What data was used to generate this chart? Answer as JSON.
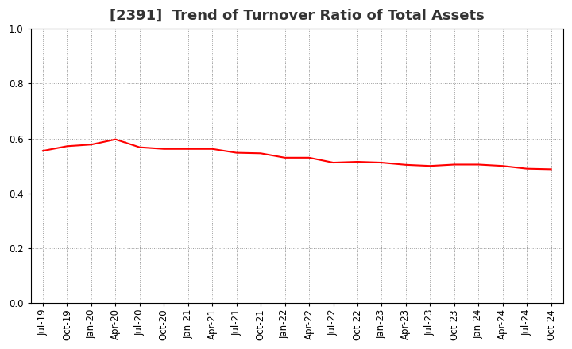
{
  "title": "[2391]  Trend of Turnover Ratio of Total Assets",
  "line_color": "#FF0000",
  "line_width": 1.5,
  "background_color": "#FFFFFF",
  "plot_bg_color": "#FFFFFF",
  "grid_color": "#999999",
  "ylim": [
    0.0,
    1.0
  ],
  "yticks": [
    0.0,
    0.2,
    0.4,
    0.6,
    0.8,
    1.0
  ],
  "values": [
    0.555,
    0.572,
    0.578,
    0.597,
    0.568,
    0.562,
    0.562,
    0.562,
    0.548,
    0.546,
    0.53,
    0.53,
    0.512,
    0.515,
    0.512,
    0.504,
    0.5,
    0.505,
    0.505,
    0.5,
    0.49,
    0.488
  ],
  "xtick_labels": [
    "Jul-19",
    "Oct-19",
    "Jan-20",
    "Apr-20",
    "Jul-20",
    "Oct-20",
    "Jan-21",
    "Apr-21",
    "Jul-21",
    "Oct-21",
    "Jan-22",
    "Apr-22",
    "Jul-22",
    "Oct-22",
    "Jan-23",
    "Apr-23",
    "Jul-23",
    "Oct-23",
    "Jan-24",
    "Apr-24",
    "Jul-24",
    "Oct-24"
  ],
  "title_fontsize": 13,
  "tick_fontsize": 8.5,
  "axis_label_color": "#333333"
}
